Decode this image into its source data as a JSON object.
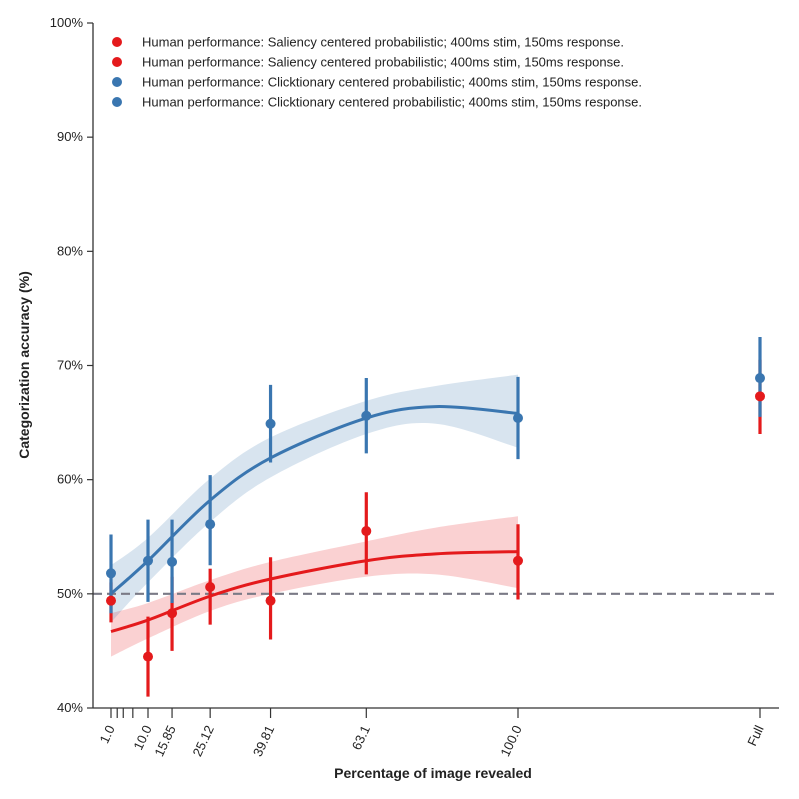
{
  "chart_data": {
    "type": "line",
    "title": "",
    "xlabel": "Percentage of image revealed",
    "ylabel": "Categorization accuracy (%)",
    "ylim": [
      40,
      100
    ],
    "yticks": [
      "40%",
      "50%",
      "60%",
      "70%",
      "80%",
      "90%",
      "100%"
    ],
    "x_tick_labels": [
      "1.0",
      "10.0",
      "15.85",
      "25.12",
      "39.81",
      "63.1",
      "100.0",
      "Full"
    ],
    "minor_x_ticks": [
      2.51,
      3.98,
      6.31
    ],
    "chance_level": 50,
    "legend_position": "top-left",
    "legend": [
      {
        "label": "Human performance: Saliency centered probabilistic; 400ms stim, 150ms response.",
        "color": "#e41a1c"
      },
      {
        "label": "Human performance: Saliency centered probabilistic; 400ms stim, 150ms response.",
        "color": "#e41a1c"
      },
      {
        "label": "Human performance: Clicktionary centered probabilistic; 400ms stim, 150ms response.",
        "color": "#3a76b0"
      },
      {
        "label": "Human performance: Clicktionary centered probabilistic; 400ms stim, 150ms response.",
        "color": "#3a76b0"
      }
    ],
    "series": [
      {
        "color": "#e41a1c",
        "points": [
          {
            "x": "1.0",
            "y": 49.4,
            "lo": 47.5,
            "hi": 51.0
          },
          {
            "x": "10.0",
            "y": 44.5,
            "lo": 41.0,
            "hi": 48.0
          },
          {
            "x": "15.85",
            "y": 48.3,
            "lo": 45.0,
            "hi": 51.5
          },
          {
            "x": "25.12",
            "y": 50.6,
            "lo": 47.3,
            "hi": 52.2
          },
          {
            "x": "39.81",
            "y": 49.4,
            "lo": 46.0,
            "hi": 53.2
          },
          {
            "x": "63.1",
            "y": 55.5,
            "lo": 51.7,
            "hi": 58.9
          },
          {
            "x": "100.0",
            "y": 52.9,
            "lo": 49.5,
            "hi": 56.1
          },
          {
            "x": "Full",
            "y": 67.3,
            "lo": 64.0,
            "hi": 70.5
          }
        ],
        "fit": [
          {
            "x": 1.0,
            "y": 46.7,
            "lo": 44.5,
            "hi": 48.3
          },
          {
            "x": 10.0,
            "y": 47.7,
            "lo": 46.1,
            "hi": 49.2
          },
          {
            "x": 25.12,
            "y": 49.8,
            "lo": 48.5,
            "hi": 51.2
          },
          {
            "x": 39.81,
            "y": 51.3,
            "lo": 50.0,
            "hi": 52.8
          },
          {
            "x": 63.1,
            "y": 52.9,
            "lo": 51.5,
            "hi": 54.6
          },
          {
            "x": 80.0,
            "y": 53.5,
            "lo": 51.7,
            "hi": 55.8
          },
          {
            "x": 100.0,
            "y": 53.7,
            "lo": 50.5,
            "hi": 56.8
          }
        ]
      },
      {
        "color": "#3a76b0",
        "points": [
          {
            "x": "1.0",
            "y": 51.8,
            "lo": 48.3,
            "hi": 55.2
          },
          {
            "x": "10.0",
            "y": 52.9,
            "lo": 49.3,
            "hi": 56.5
          },
          {
            "x": "15.85",
            "y": 52.8,
            "lo": 49.2,
            "hi": 56.5
          },
          {
            "x": "25.12",
            "y": 56.1,
            "lo": 52.5,
            "hi": 60.4
          },
          {
            "x": "39.81",
            "y": 64.9,
            "lo": 61.5,
            "hi": 68.3
          },
          {
            "x": "63.1",
            "y": 65.6,
            "lo": 62.3,
            "hi": 68.9
          },
          {
            "x": "100.0",
            "y": 65.4,
            "lo": 61.8,
            "hi": 69.0
          },
          {
            "x": "Full",
            "y": 68.9,
            "lo": 65.5,
            "hi": 72.5
          }
        ],
        "fit": [
          {
            "x": 1.0,
            "y": 50.0,
            "lo": 47.5,
            "hi": 52.5
          },
          {
            "x": 10.0,
            "y": 52.9,
            "lo": 51.0,
            "hi": 54.9
          },
          {
            "x": 25.12,
            "y": 58.2,
            "lo": 56.3,
            "hi": 60.1
          },
          {
            "x": 39.81,
            "y": 61.9,
            "lo": 60.2,
            "hi": 63.7
          },
          {
            "x": 63.1,
            "y": 65.4,
            "lo": 64.0,
            "hi": 66.9
          },
          {
            "x": 80.0,
            "y": 66.4,
            "lo": 64.9,
            "hi": 68.2
          },
          {
            "x": 100.0,
            "y": 65.8,
            "lo": 62.8,
            "hi": 69.2
          }
        ]
      }
    ]
  }
}
